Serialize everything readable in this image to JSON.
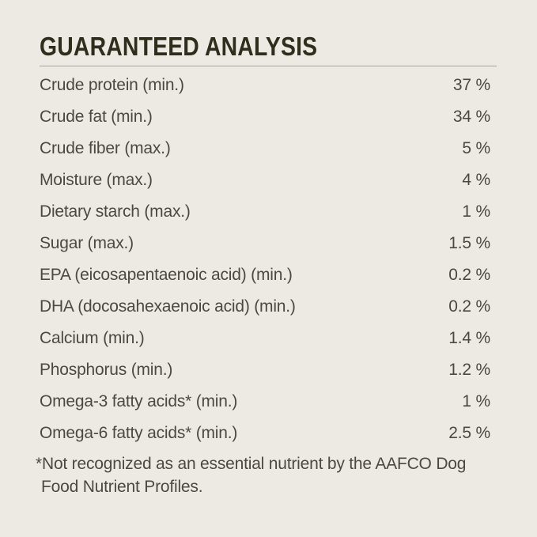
{
  "panel": {
    "title": "GUARANTEED ANALYSIS",
    "rows": [
      {
        "label": "Crude protein (min.)",
        "value": "37 %"
      },
      {
        "label": "Crude fat (min.)",
        "value": "34 %"
      },
      {
        "label": "Crude fiber (max.)",
        "value": "5 %"
      },
      {
        "label": "Moisture (max.)",
        "value": "4 %"
      },
      {
        "label": "Dietary starch (max.)",
        "value": "1 %"
      },
      {
        "label": "Sugar (max.)",
        "value": "1.5 %"
      },
      {
        "label": "EPA (eicosapentaenoic acid) (min.)",
        "value": "0.2 %"
      },
      {
        "label": "DHA (docosahexaenoic acid) (min.)",
        "value": "0.2 %"
      },
      {
        "label": "Calcium (min.)",
        "value": "1.4 %"
      },
      {
        "label": "Phosphorus (min.)",
        "value": "1.2 %"
      },
      {
        "label": "Omega-3 fatty acids* (min.)",
        "value": "1 %"
      },
      {
        "label": "Omega-6 fatty acids* (min.)",
        "value": "2.5 %"
      }
    ],
    "footnote_lines": [
      "*Not recognized as an essential nutrient by the AAFCO Dog",
      "Food Nutrient Profiles."
    ],
    "colors": {
      "background": "#ECEAE2",
      "title_text": "#2F2E1C",
      "body_text": "#4A4942",
      "rule": "#A6A399"
    }
  }
}
